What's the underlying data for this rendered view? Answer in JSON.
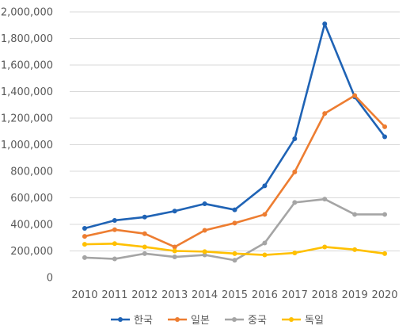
{
  "chart_data": {
    "type": "line",
    "title": "",
    "xlabel": "",
    "ylabel": "",
    "x": [
      "2010",
      "2011",
      "2012",
      "2013",
      "2014",
      "2015",
      "2016",
      "2017",
      "2018",
      "2019",
      "2020"
    ],
    "ylim": [
      0,
      2000000
    ],
    "yticks": [
      "0",
      "200,000",
      "400,000",
      "600,000",
      "800,000",
      "1,000,000",
      "1,200,000",
      "1,400,000",
      "1,600,000",
      "1,800,000",
      "2,000,000"
    ],
    "grid": true,
    "legend_position": "bottom",
    "series": [
      {
        "name": "한국",
        "color": "#1f63b5",
        "values": [
          370000,
          430000,
          455000,
          500000,
          555000,
          510000,
          690000,
          1045000,
          1910000,
          1360000,
          1060000
        ]
      },
      {
        "name": "일본",
        "color": "#ed7d31",
        "values": [
          310000,
          360000,
          330000,
          230000,
          355000,
          410000,
          475000,
          795000,
          1235000,
          1370000,
          1135000
        ]
      },
      {
        "name": "중국",
        "color": "#a5a5a5",
        "values": [
          150000,
          140000,
          180000,
          155000,
          170000,
          130000,
          260000,
          565000,
          590000,
          475000,
          475000
        ]
      },
      {
        "name": "독일",
        "color": "#ffc000",
        "values": [
          250000,
          255000,
          230000,
          200000,
          195000,
          180000,
          170000,
          185000,
          230000,
          210000,
          180000
        ]
      }
    ]
  }
}
